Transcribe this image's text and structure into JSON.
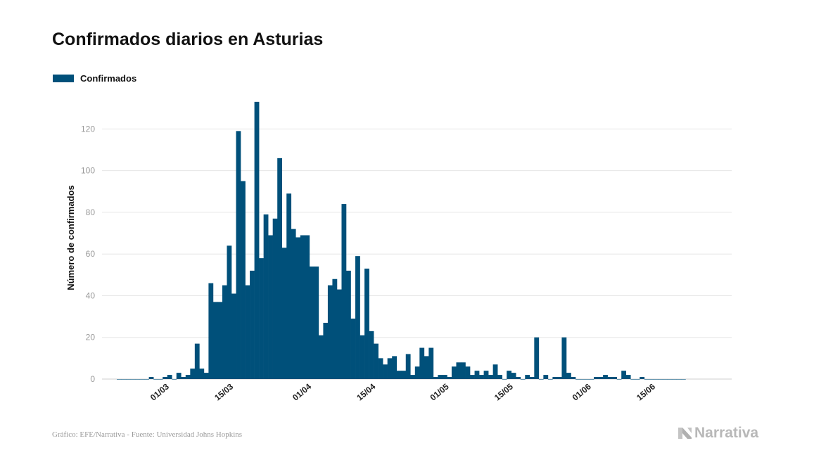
{
  "title": "Confirmados diarios en Asturias",
  "legend": {
    "label": "Confirmados",
    "color": "#00507a"
  },
  "footer": "Gráfico: EFE/Narrativa - Fuente: Universidad Johns Hopkins",
  "brand": {
    "name": "Narrativa",
    "icon": "narrativa-logo-icon"
  },
  "chart_data": {
    "type": "bar",
    "title": "Confirmados diarios en Asturias",
    "ylabel": "Número de confirmados",
    "xlabel": "",
    "ylim": [
      0,
      137
    ],
    "yticks": [
      0,
      20,
      40,
      60,
      80,
      100,
      120
    ],
    "grid": true,
    "legend_position": "top-left",
    "series": [
      {
        "name": "Confirmados",
        "color": "#00507a",
        "start_date": "2020-02-19",
        "values": [
          0,
          0,
          0,
          0,
          0,
          0,
          0,
          1,
          0,
          0,
          1,
          2,
          0,
          3,
          1,
          2,
          5,
          17,
          5,
          3,
          46,
          37,
          37,
          45,
          64,
          41,
          119,
          95,
          45,
          52,
          133,
          58,
          79,
          69,
          77,
          106,
          63,
          89,
          72,
          68,
          69,
          69,
          54,
          54,
          21,
          27,
          45,
          48,
          43,
          84,
          52,
          29,
          59,
          21,
          53,
          23,
          17,
          10,
          7,
          10,
          11,
          4,
          4,
          12,
          2,
          6,
          15,
          11,
          15,
          1,
          2,
          2,
          1,
          6,
          8,
          8,
          6,
          2,
          4,
          2,
          4,
          2,
          7,
          2,
          0,
          4,
          3,
          1,
          0,
          2,
          1,
          20,
          0,
          2,
          0,
          1,
          1,
          20,
          3,
          1,
          0,
          0,
          0,
          0,
          1,
          1,
          2,
          1,
          1,
          0,
          4,
          2,
          0,
          0,
          1,
          0,
          0,
          0,
          0,
          0,
          0,
          0,
          0,
          0
        ]
      }
    ],
    "x_tick_labels": [
      {
        "label": "01/03",
        "date": "2020-03-01"
      },
      {
        "label": "15/03",
        "date": "2020-03-15"
      },
      {
        "label": "01/04",
        "date": "2020-04-01"
      },
      {
        "label": "15/04",
        "date": "2020-04-15"
      },
      {
        "label": "01/05",
        "date": "2020-05-01"
      },
      {
        "label": "15/05",
        "date": "2020-05-15"
      },
      {
        "label": "01/06",
        "date": "2020-06-01"
      },
      {
        "label": "15/06",
        "date": "2020-06-15"
      }
    ]
  }
}
